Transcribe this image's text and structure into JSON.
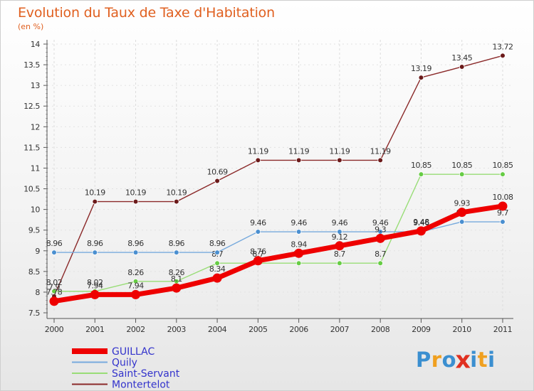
{
  "header": {
    "title": "Evolution du Taux de Taxe d'Habitation",
    "subtitle": "(en %)"
  },
  "logo": {
    "letters": [
      "P",
      "r",
      "o",
      "x",
      "i",
      "t",
      "i"
    ],
    "colors": [
      "#3b8fd0",
      "#f0a020",
      "#3b8fd0",
      "#e03020",
      "#3b8fd0",
      "#f0a020",
      "#3b8fd0"
    ]
  },
  "chart_data": {
    "type": "line",
    "title": "Evolution du Taux de Taxe d'Habitation",
    "ylabel": "(en %)",
    "xlabel": "",
    "x": [
      "2000",
      "2001",
      "2002",
      "2003",
      "2004",
      "2005",
      "2006",
      "2007",
      "2008",
      "2009",
      "2010",
      "2011"
    ],
    "ylim": [
      7.5,
      14
    ],
    "yticks": [
      "7.5",
      "8",
      "8.5",
      "9",
      "9.5",
      "10",
      "10.5",
      "11",
      "11.5",
      "12",
      "12.5",
      "13",
      "13.5",
      "14"
    ],
    "legend_position": "bottom-left",
    "series": [
      {
        "name": "Montertelot",
        "color": "#8b2a2a",
        "marker": "#6b1a1a",
        "values": [
          7.9,
          10.19,
          10.19,
          10.19,
          10.69,
          11.19,
          11.19,
          11.19,
          11.19,
          13.19,
          13.45,
          13.72
        ],
        "labels": [
          "7.9",
          "10.19",
          "10.19",
          "10.19",
          "10.69",
          "11.19",
          "11.19",
          "11.19",
          "11.19",
          "13.19",
          "13.45",
          "13.72"
        ]
      },
      {
        "name": "Saint-Servant",
        "color": "#99dd77",
        "marker": "#66cc44",
        "values": [
          8.02,
          8.02,
          8.26,
          8.26,
          8.7,
          8.7,
          8.7,
          8.7,
          8.7,
          10.85,
          10.85,
          10.85
        ],
        "labels": [
          "8.02",
          "8.02",
          "8.26",
          "8.26",
          "8.7",
          "8.7",
          "8.7",
          "8.7",
          "8.7",
          "10.85",
          "10.85",
          "10.85"
        ]
      },
      {
        "name": "Quily",
        "color": "#77aadd",
        "marker": "#4a8fd0",
        "values": [
          8.96,
          8.96,
          8.96,
          8.96,
          8.96,
          9.46,
          9.46,
          9.46,
          9.46,
          9.46,
          9.7,
          9.7
        ],
        "labels": [
          "8.96",
          "8.96",
          "8.96",
          "8.96",
          "8.96",
          "9.46",
          "9.46",
          "9.46",
          "9.46",
          "9.46",
          "9.7",
          "9.7"
        ]
      },
      {
        "name": "GUILLAC",
        "color": "#ee0000",
        "marker": "#ee0000",
        "values": [
          7.78,
          7.94,
          7.94,
          8.1,
          8.34,
          8.76,
          8.94,
          9.12,
          9.3,
          9.48,
          9.93,
          10.08
        ],
        "labels": [
          "7.78",
          "7.94",
          "7.94",
          "8.1",
          "8.34",
          "8.76",
          "8.94",
          "9.12",
          "9.3",
          "9.48",
          "9.93",
          "10.08"
        ]
      }
    ],
    "legend": [
      "GUILLAC",
      "Quily",
      "Saint-Servant",
      "Montertelot"
    ]
  }
}
